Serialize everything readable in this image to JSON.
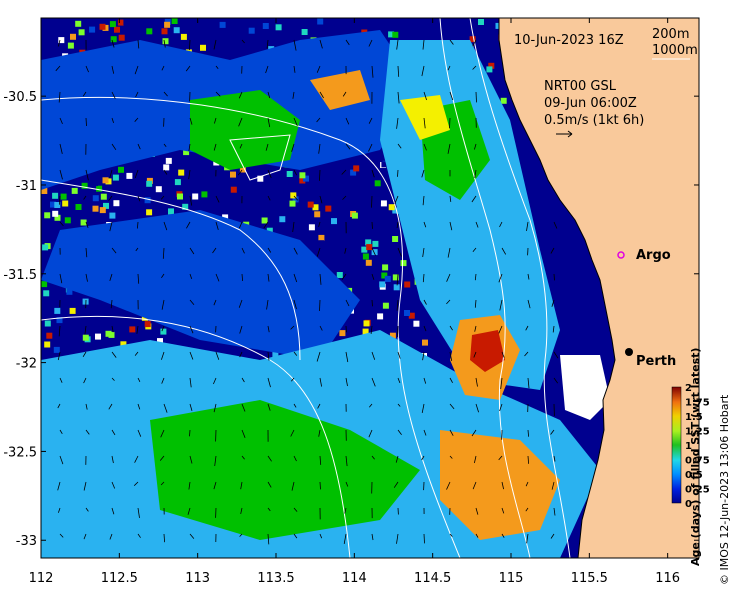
{
  "map": {
    "date_label": "10-Jun-2023 16Z",
    "contour_labels": [
      "200m",
      "1000m"
    ],
    "current_info": {
      "source": "NRT00 GSL",
      "time": "09-Jun 06:00Z",
      "scale": "0.5m/s (1kt 6h)"
    },
    "places": [
      {
        "name": "Argo",
        "lon": 115.85,
        "lat": -31.48,
        "marker": "circle-magenta"
      },
      {
        "name": "Perth",
        "lon": 115.86,
        "lat": -31.95,
        "marker": "dot-black"
      }
    ],
    "extent": {
      "lon": [
        112,
        116.2
      ],
      "lat": [
        -33.1,
        -30.06
      ]
    }
  },
  "axes": {
    "x_ticks": [
      112,
      112.5,
      113,
      113.5,
      114,
      114.5,
      115,
      115.5,
      116
    ],
    "x_tick_labels": [
      "112",
      "112.5",
      "113",
      "113.5",
      "114",
      "114.5",
      "115",
      "115.5",
      "116"
    ],
    "y_ticks": [
      -30.5,
      -31,
      -31.5,
      -32,
      -32.5,
      -33
    ],
    "y_tick_labels": [
      "-30.5",
      "-31",
      "-31.5",
      "-32",
      "-32.5",
      "-33"
    ]
  },
  "colorbar": {
    "label": "Age (days) of filled SST (wrt latest)",
    "ticks": [
      "2",
      "1.75",
      "1.5",
      "1.25",
      "1",
      "0.75",
      "0.5",
      "0.25",
      "0"
    ],
    "range": [
      0,
      2
    ]
  },
  "copyright": "© IMOS 12-Jun-2023 13:06 Hobart",
  "colors": {
    "land": "#f9c99b",
    "dark_navy": "#00008f",
    "blue": "#0047d6",
    "sky": "#2ab2f0",
    "aqua": "#1fd6c0",
    "green": "#00c000",
    "lime": "#7cff2c",
    "yellow": "#f4f000",
    "orange": "#f49a1c",
    "red": "#c81a00",
    "dark_red": "#7f0000",
    "white": "#ffffff"
  }
}
